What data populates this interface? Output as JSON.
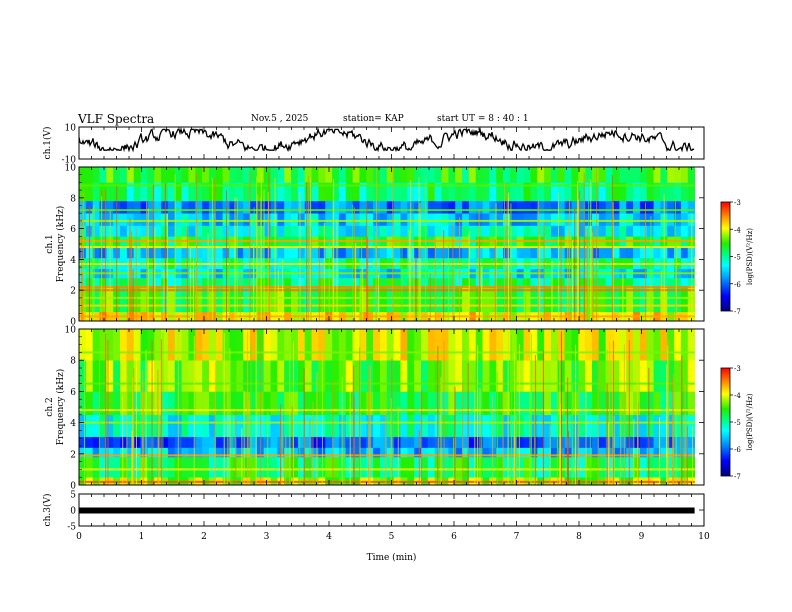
{
  "header": {
    "title": "VLF Spectra",
    "date": "Nov.5 , 2025",
    "station": "station= KAP",
    "start": "start UT = 8 : 40 : 1"
  },
  "chart_data": [
    {
      "type": "line",
      "id": "ch1-waveform",
      "ylabel": "ch.1(V)",
      "ylim": [
        -10,
        10
      ],
      "yticks": [
        "10",
        "-10"
      ],
      "xlim": [
        0,
        10
      ],
      "description_range": [
        0,
        9.85
      ]
    },
    {
      "type": "heatmap",
      "id": "ch1-spectrogram",
      "ylabel": "ch.1\nFrequency (kHz)",
      "ylabel_lines": [
        "ch.1",
        "Frequency (kHz)"
      ],
      "ylim": [
        0,
        10
      ],
      "yticks": [
        "0",
        "2",
        "4",
        "6",
        "8",
        "10"
      ],
      "xlim": [
        0,
        9.85
      ],
      "colorbar": {
        "min": -7,
        "max": -3,
        "ticks": [
          "-3",
          "-4",
          "-5",
          "-6",
          "-7"
        ],
        "label": "log(PSD)(V²/Hz)"
      },
      "bands_khz": [
        {
          "f": 0.3,
          "level": -3.6
        },
        {
          "f": 1.0,
          "level": -3.8
        },
        {
          "f": 1.5,
          "level": -4.2
        },
        {
          "f": 2.0,
          "level": -3.4
        },
        {
          "f": 2.2,
          "level": -3.5
        },
        {
          "f": 3.1,
          "level": -4.3
        },
        {
          "f": 3.7,
          "level": -4.0
        },
        {
          "f": 4.8,
          "level": -3.9
        },
        {
          "f": 5.2,
          "level": -3.6
        },
        {
          "f": 6.5,
          "level": -4.2
        },
        {
          "f": 7.2,
          "level": -4.4
        },
        {
          "f": 8.8,
          "level": -4.4
        }
      ],
      "background_levels": [
        {
          "f0": 0,
          "f1": 0.6,
          "level": -3.9
        },
        {
          "f0": 0.6,
          "f1": 2.3,
          "level": -4.6
        },
        {
          "f0": 2.3,
          "f1": 2.8,
          "level": -4.9
        },
        {
          "f0": 2.8,
          "f1": 3.4,
          "level": -5.4
        },
        {
          "f0": 3.4,
          "f1": 4.1,
          "level": -5.0
        },
        {
          "f0": 4.1,
          "f1": 4.8,
          "level": -5.6
        },
        {
          "f0": 4.8,
          "f1": 5.5,
          "level": -4.7
        },
        {
          "f0": 5.5,
          "f1": 6.2,
          "level": -5.3
        },
        {
          "f0": 6.2,
          "f1": 7.0,
          "level": -5.5
        },
        {
          "f0": 7.0,
          "f1": 7.8,
          "level": -5.9
        },
        {
          "f0": 7.8,
          "f1": 9.0,
          "level": -4.9
        },
        {
          "f0": 9.0,
          "f1": 10,
          "level": -4.6
        }
      ]
    },
    {
      "type": "heatmap",
      "id": "ch2-spectrogram",
      "ylabel": "ch.2\nFrequency (kHz)",
      "ylabel_lines": [
        "ch.2",
        "Frequency (kHz)"
      ],
      "ylim": [
        0,
        10
      ],
      "yticks": [
        "0",
        "2",
        "4",
        "6",
        "8",
        "10"
      ],
      "xlim": [
        0,
        9.85
      ],
      "colorbar": {
        "min": -7,
        "max": -3,
        "ticks": [
          "-3",
          "-4",
          "-5",
          "-6",
          "-7"
        ],
        "label": "log(PSD)(V²/Hz)"
      },
      "bands_khz": [
        {
          "f": 0.2,
          "level": -3.3
        },
        {
          "f": 1.0,
          "level": -4.0
        },
        {
          "f": 1.9,
          "level": -3.6
        },
        {
          "f": 4.0,
          "level": -4.2
        },
        {
          "f": 4.8,
          "level": -4.0
        },
        {
          "f": 6.5,
          "level": -4.4
        },
        {
          "f": 8.5,
          "level": -4.3
        }
      ],
      "background_levels": [
        {
          "f0": 0,
          "f1": 0.5,
          "level": -4.2
        },
        {
          "f0": 0.5,
          "f1": 1.8,
          "level": -4.8
        },
        {
          "f0": 1.8,
          "f1": 2.4,
          "level": -5.6
        },
        {
          "f0": 2.4,
          "f1": 3.1,
          "level": -6.0
        },
        {
          "f0": 3.1,
          "f1": 4.5,
          "level": -5.2
        },
        {
          "f0": 4.5,
          "f1": 6.0,
          "level": -4.6
        },
        {
          "f0": 6.0,
          "f1": 8.0,
          "level": -4.4
        },
        {
          "f0": 8.0,
          "f1": 10,
          "level": -4.1
        }
      ]
    },
    {
      "type": "line",
      "id": "ch3-waveform",
      "ylabel": "ch.3(V)",
      "ylim": [
        -5,
        5
      ],
      "yticks": [
        "5",
        "0",
        "-5"
      ],
      "xlim": [
        0,
        10
      ],
      "value": 0
    }
  ],
  "xaxis": {
    "label": "Time (min)",
    "ticks": [
      "0",
      "1",
      "2",
      "3",
      "4",
      "5",
      "6",
      "7",
      "8",
      "9",
      "10"
    ]
  },
  "colors": {
    "axis": "#000000"
  }
}
